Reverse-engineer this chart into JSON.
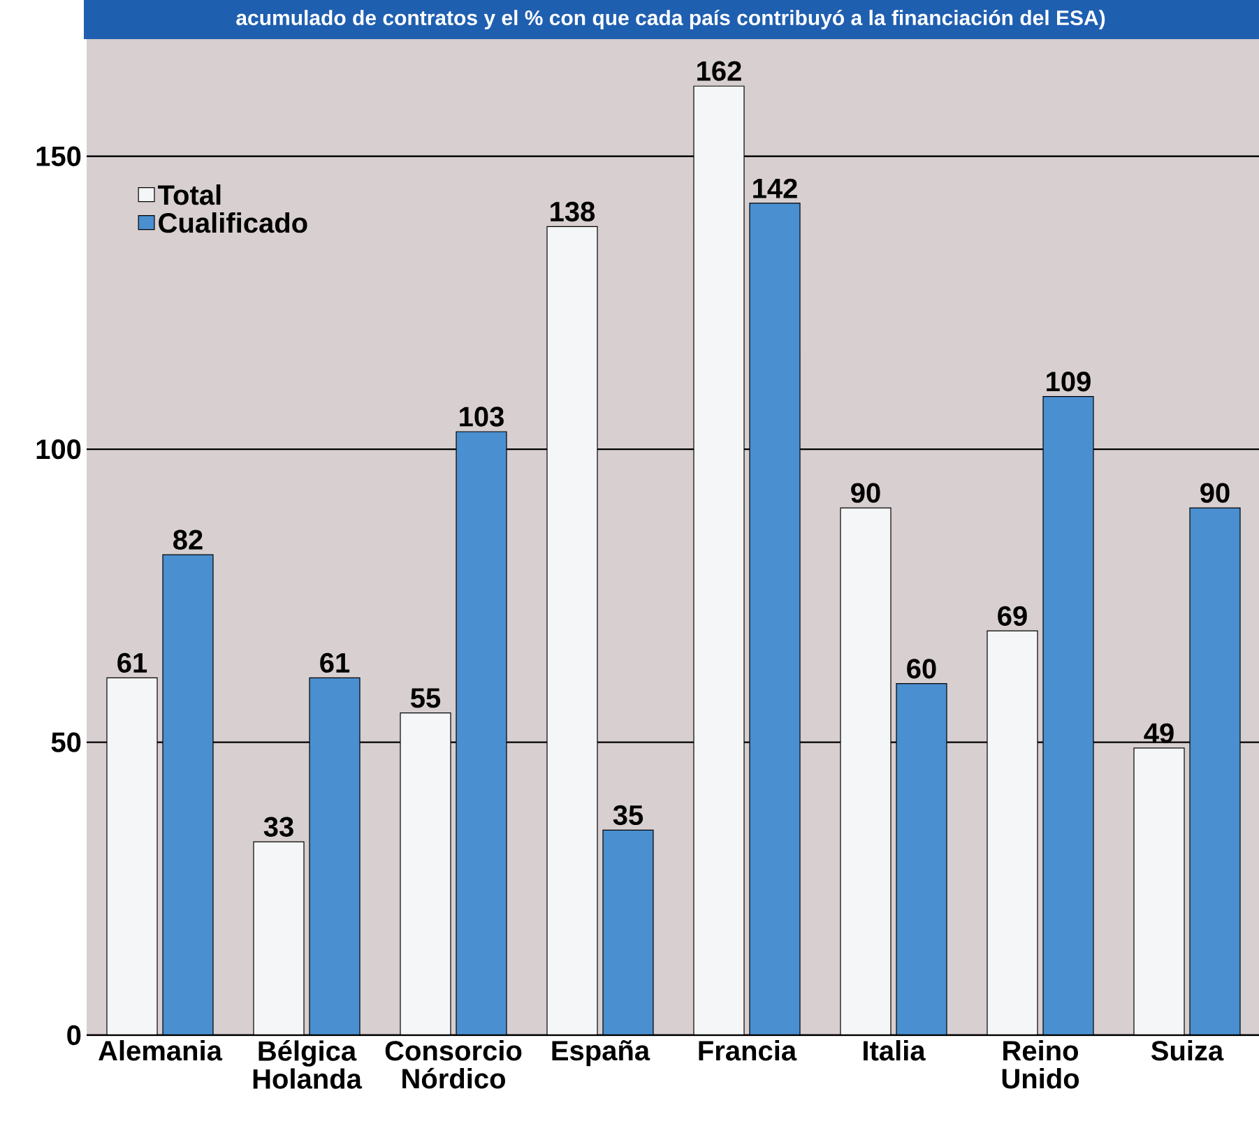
{
  "chart_data": {
    "type": "bar",
    "title": "acumulado de contratos y el % con que cada país contribuyó a la financiación del ESA)",
    "categories": [
      "Alemania",
      "Bélgica Holanda",
      "Consorcio Nórdico",
      "España",
      "Francia",
      "Italia",
      "Reino Unido",
      "Suiza"
    ],
    "series": [
      {
        "name": "Total",
        "color": "#f4f6f8",
        "values": [
          61,
          33,
          55,
          138,
          162,
          90,
          69,
          49
        ]
      },
      {
        "name": "Cualificado",
        "color": "#4a8fd0",
        "values": [
          82,
          61,
          103,
          35,
          142,
          60,
          109,
          90
        ]
      }
    ],
    "ylim": [
      0,
      170
    ],
    "yticks": [
      0,
      50,
      100,
      150
    ],
    "grid": "y",
    "legend": "top left",
    "data_labels": true
  }
}
